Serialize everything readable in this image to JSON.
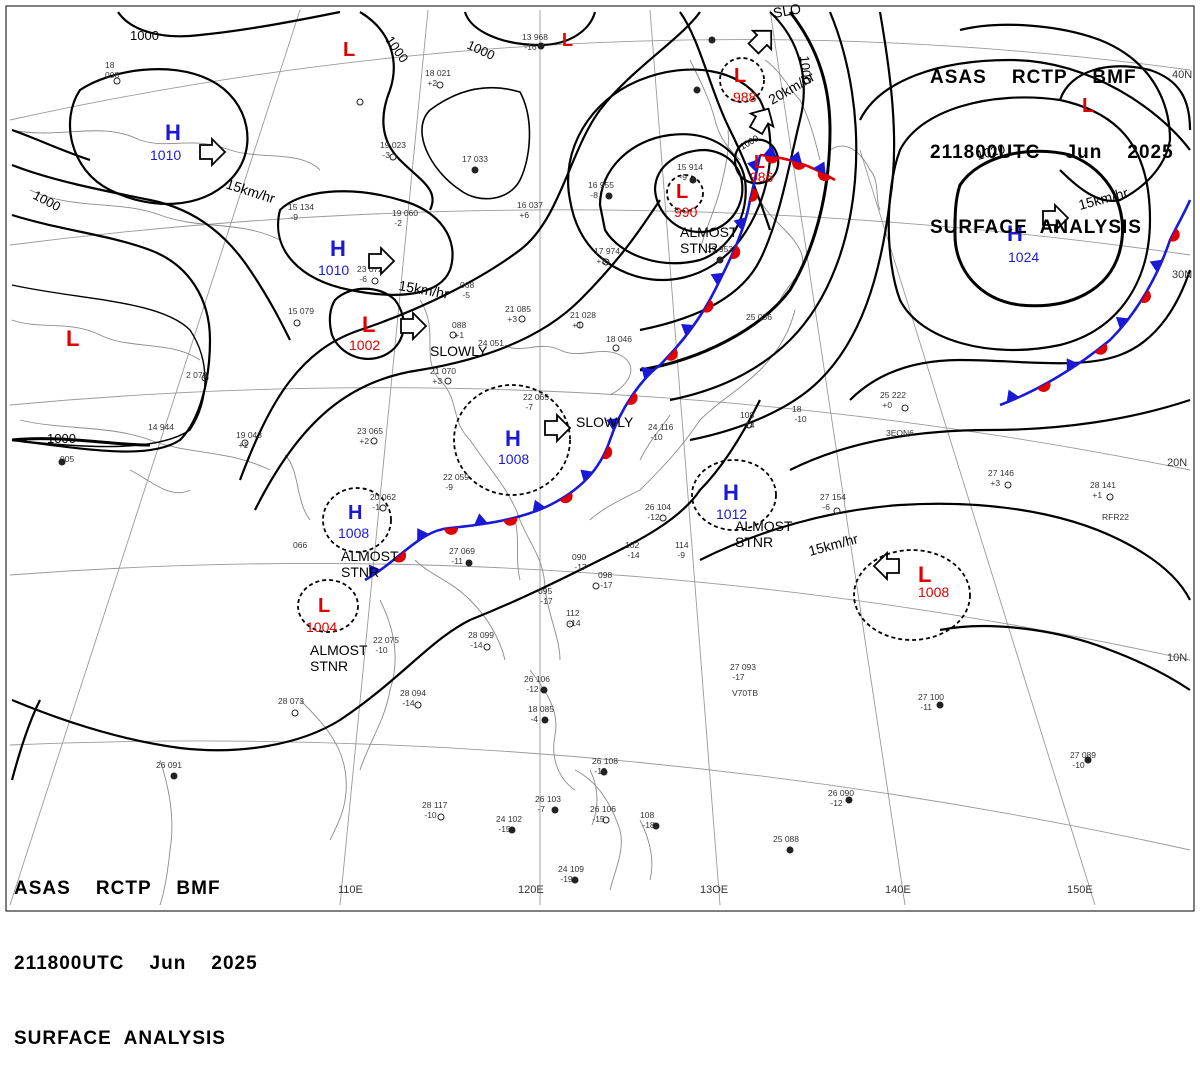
{
  "header": {
    "line1": "ASAS    RCTP    BMF",
    "line2": "211800UTC    Jun    2025",
    "line3": "SURFACE  ANALYSIS"
  },
  "colors": {
    "high": "#1a1ad6",
    "low": "#e00000",
    "cold_front": "#1a1ad6",
    "warm_front": "#e00000",
    "isobar": "#000000",
    "graticule": "#999999",
    "coast": "#888888"
  },
  "longitudes": [
    "110E",
    "120E",
    "13OE",
    "140E",
    "150E"
  ],
  "latitudes": [
    "40N",
    "30N",
    "20N",
    "10N"
  ],
  "isobar_labels": [
    "1000",
    "1000",
    "1000",
    "1000",
    "1000",
    "1000",
    "1020",
    "1000"
  ],
  "pressure_centers": [
    {
      "type": "H",
      "value": "1010"
    },
    {
      "type": "H",
      "value": "1010"
    },
    {
      "type": "L",
      "value": "1002"
    },
    {
      "type": "H",
      "value": "1008"
    },
    {
      "type": "H",
      "value": "1008"
    },
    {
      "type": "L",
      "value": "1004"
    },
    {
      "type": "H",
      "value": "1012"
    },
    {
      "type": "L",
      "value": "1008"
    },
    {
      "type": "H",
      "value": "1024"
    },
    {
      "type": "L",
      "value": "990"
    },
    {
      "type": "L",
      "value": "986"
    },
    {
      "type": "L",
      "value": "988"
    },
    {
      "type": "L",
      "value": ""
    },
    {
      "type": "L",
      "value": ""
    },
    {
      "type": "L",
      "value": ""
    },
    {
      "type": "L",
      "value": ""
    }
  ],
  "motion_labels": [
    "15km/hr",
    "15km/hr",
    "SLOWLY",
    "SLOWLY",
    "ALMOST\nSTNR",
    "ALMOST\nSTNR",
    "ALMOST\nSTNR",
    "15km/hr",
    "15km/hr",
    "20km/hr",
    "ALMOST\nSTNR",
    "SLO"
  ],
  "stations": [
    "18\n008",
    "13  968\n  -16",
    "18  021\n  +2",
    "19  023\n  -3",
    "17  033",
    "15  134\n  -9",
    "19  060\n  -2",
    "16  037\n  +6",
    "16  955\n  -8",
    "15  914\n  -9",
    "23  072\n  -6",
    "068\n  -5",
    "15  079",
    "2  079",
    "088\n  +1",
    "21  085\n  +3",
    "21  028\n  +1",
    "24  051",
    "21  070\n  +3",
    "18  046",
    "17  974\n  +3",
    "19  953",
    "25  036",
    "22  065\n  -7",
    "23  065\n  +2",
    "19  043\n  +1",
    "14  944",
    "005",
    "20  062\n  -1",
    "066",
    "22  059\n  -9",
    "27  069\n  -11",
    "26  104\n  -12",
    "108\n  -14",
    "24  116\n  -10",
    "18\n  -10",
    "25  222\n  +0",
    "27  146\n  +3",
    "27  154\n  -6",
    "28  141\n  +1",
    "090\n  -17",
    "098\n  -17",
    "102\n  -14",
    "114\n  -9",
    "112\n  -14",
    "095\n  -17",
    "28  099\n  -14",
    "22  075\n  -10",
    "28  094\n  -14",
    "28  073",
    "26  106\n  -12",
    "18  085\n  -4",
    "27  093\n  -17",
    "27  100\n  -11",
    "27  089\n  -10",
    "26  091",
    "28  117\n  -10",
    "24  102\n  -15",
    "26  103\n  -7",
    "26  106\n  -15",
    "108\n  -18",
    "26  108\n  -15",
    "25  088",
    "24  109\n  -19",
    "26  090\n  -12",
    "3EON6",
    "RFR22",
    "V70TB"
  ]
}
